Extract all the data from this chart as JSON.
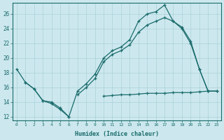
{
  "xlabel": "Humidex (Indice chaleur)",
  "bg_color": "#cce8ee",
  "grid_color": "#aad0d8",
  "line_color": "#1a6b6b",
  "xlim": [
    -0.5,
    23.5
  ],
  "ylim": [
    11.5,
    27.5
  ],
  "xticks": [
    0,
    1,
    2,
    3,
    4,
    5,
    6,
    7,
    8,
    9,
    10,
    11,
    12,
    13,
    14,
    15,
    16,
    17,
    18,
    19,
    20,
    21,
    22,
    23
  ],
  "yticks": [
    12,
    14,
    16,
    18,
    20,
    22,
    24,
    26
  ],
  "series1_x": [
    0,
    1,
    2,
    3,
    4,
    5,
    6,
    7,
    8,
    9,
    10,
    11,
    12,
    13,
    14,
    15,
    16,
    17,
    18,
    19,
    20,
    21,
    22
  ],
  "series1_y": [
    18.5,
    16.7,
    15.8,
    14.2,
    14.0,
    13.2,
    12.0,
    15.5,
    16.5,
    17.8,
    20.0,
    21.0,
    21.5,
    22.5,
    25.0,
    26.0,
    26.3,
    27.2,
    25.0,
    24.2,
    22.3,
    18.5,
    15.5
  ],
  "series2_x": [
    0,
    1,
    2,
    3,
    4,
    5,
    6,
    7,
    8,
    9,
    10,
    11,
    12,
    13,
    14,
    15,
    16,
    17,
    18,
    19,
    20,
    21,
    22,
    23
  ],
  "series2_y": [
    null,
    null,
    null,
    null,
    null,
    null,
    null,
    15.0,
    16.0,
    17.2,
    19.5,
    20.5,
    21.0,
    21.8,
    23.5,
    24.5,
    25.0,
    25.5,
    25.0,
    24.0,
    22.0,
    18.5,
    15.5,
    15.5
  ],
  "series3_x": [
    0,
    1,
    2,
    3,
    4,
    5,
    6,
    7,
    8,
    9,
    10,
    11,
    12,
    13,
    14,
    15,
    16,
    17,
    18,
    19,
    20,
    21,
    22,
    23
  ],
  "series3_y": [
    null,
    16.7,
    15.8,
    14.2,
    13.8,
    13.0,
    12.0,
    null,
    null,
    null,
    14.8,
    14.9,
    15.0,
    15.0,
    15.1,
    15.2,
    15.2,
    15.2,
    15.3,
    15.3,
    15.3,
    15.4,
    15.5,
    15.5
  ]
}
